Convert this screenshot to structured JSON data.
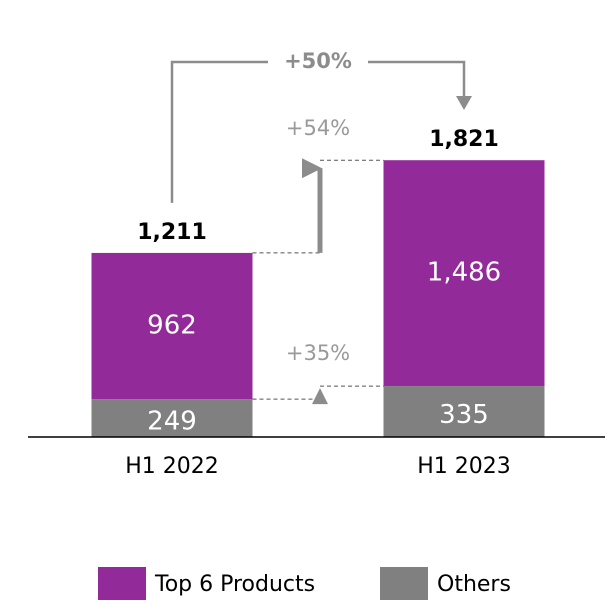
{
  "chart_data": {
    "type": "stacked_bar",
    "categories": [
      "H1 2022",
      "H1 2023"
    ],
    "series": [
      {
        "name": "Top 6 Products",
        "color": "#922b99",
        "values": [
          962,
          1486
        ],
        "value_labels": [
          "962",
          "1,486"
        ]
      },
      {
        "name": "Others",
        "color": "#808080",
        "values": [
          249,
          335
        ]
      }
    ],
    "totals": {
      "values": [
        1211,
        1821
      ],
      "value_labels": [
        "1,211",
        "1,821"
      ]
    },
    "annotations": {
      "total_growth": "+50%",
      "top6_growth": "+54%",
      "others_growth": "+35%"
    },
    "legend": "bottom"
  }
}
